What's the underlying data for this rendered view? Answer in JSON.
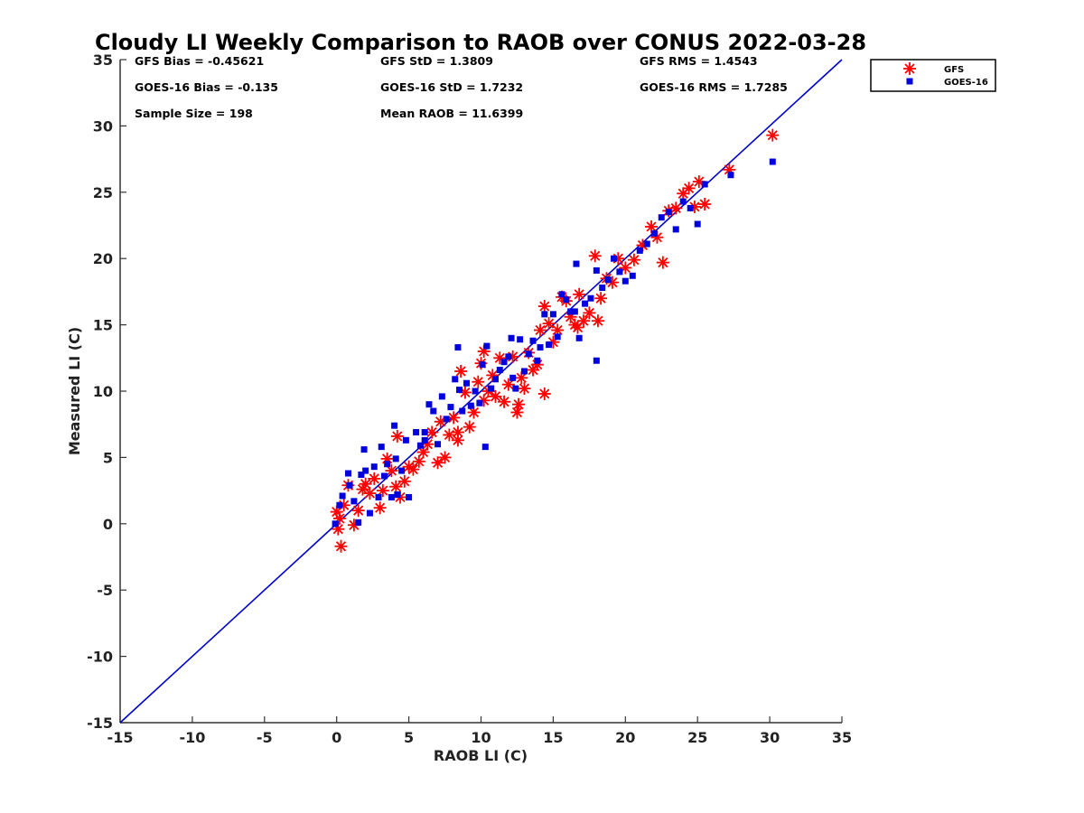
{
  "chart_data": {
    "type": "scatter",
    "title": "Cloudy LI Weekly Comparison to RAOB over CONUS 2022-03-28",
    "xlabel": "RAOB LI (C)",
    "ylabel": "Measured LI (C)",
    "xlim": [
      -15,
      35
    ],
    "ylim": [
      -15,
      35
    ],
    "xticks": [
      -15,
      -10,
      -5,
      0,
      5,
      10,
      15,
      20,
      25,
      30,
      35
    ],
    "yticks": [
      -15,
      -10,
      -5,
      0,
      5,
      10,
      15,
      20,
      25,
      30,
      35
    ],
    "grid": false,
    "legend_position": "outside-top-right",
    "reference_line": {
      "x": [
        -15,
        35
      ],
      "y": [
        -15,
        35
      ],
      "color": "#0000cc"
    },
    "stats": [
      "GFS Bias = -0.45621",
      "GFS StD = 1.3809",
      "GFS RMS = 1.4543",
      "GOES-16 Bias = -0.135",
      "GOES-16 StD = 1.7232",
      "GOES-16 RMS = 1.7285",
      "Sample Size = 198",
      "Mean RAOB = 11.6399"
    ],
    "series": [
      {
        "name": "GFS",
        "marker": "asterisk",
        "color": "#ff0000",
        "x": [
          0.0,
          0.1,
          0.2,
          0.5,
          0.8,
          1.2,
          1.5,
          1.8,
          2.0,
          2.3,
          2.6,
          3.0,
          3.2,
          3.5,
          3.8,
          4.1,
          4.4,
          4.7,
          5.0,
          5.3,
          5.7,
          6.0,
          6.3,
          6.6,
          7.0,
          7.2,
          7.5,
          7.8,
          8.1,
          8.4,
          8.6,
          8.9,
          9.2,
          9.5,
          9.8,
          10.0,
          10.2,
          10.5,
          10.8,
          11.0,
          11.3,
          11.6,
          11.9,
          12.2,
          12.5,
          12.8,
          13.0,
          13.3,
          13.6,
          13.9,
          14.1,
          14.4,
          14.7,
          15.0,
          15.3,
          15.6,
          15.9,
          16.2,
          16.5,
          16.8,
          17.1,
          17.5,
          17.9,
          18.3,
          18.7,
          19.1,
          19.5,
          20.0,
          20.6,
          21.2,
          21.8,
          22.2,
          22.6,
          23.0,
          23.5,
          24.0,
          24.4,
          24.8,
          25.1,
          25.5,
          27.2,
          30.2,
          4.2,
          8.4,
          12.6,
          14.4,
          10.2,
          16.7,
          18.1,
          0.3
        ],
        "y": [
          0.9,
          -0.4,
          0.4,
          1.4,
          2.9,
          -0.1,
          1.0,
          2.6,
          3.0,
          2.3,
          3.4,
          1.2,
          2.5,
          4.9,
          4.0,
          2.8,
          2.0,
          3.2,
          4.3,
          4.1,
          4.7,
          5.4,
          6.0,
          6.9,
          4.6,
          7.7,
          5.0,
          6.7,
          8.0,
          6.3,
          11.5,
          9.9,
          7.3,
          8.4,
          10.7,
          12.1,
          9.3,
          10.0,
          11.2,
          9.6,
          12.5,
          9.2,
          10.5,
          12.6,
          8.4,
          11.0,
          10.2,
          12.9,
          11.6,
          12.0,
          14.6,
          16.4,
          15.1,
          13.7,
          14.6,
          17.1,
          16.8,
          15.6,
          15.0,
          17.3,
          15.3,
          15.9,
          20.2,
          17.0,
          18.5,
          18.2,
          20.0,
          19.3,
          19.9,
          21.0,
          22.4,
          21.6,
          19.7,
          23.6,
          23.8,
          24.9,
          25.3,
          23.9,
          25.8,
          24.1,
          26.7,
          29.3,
          6.6,
          6.9,
          9.0,
          9.8,
          13.0,
          14.8,
          15.3,
          -1.7
        ]
      },
      {
        "name": "GOES-16",
        "marker": "square",
        "color": "#0000dd",
        "x": [
          -0.1,
          0.2,
          0.4,
          0.8,
          0.9,
          1.2,
          1.5,
          1.7,
          2.0,
          2.3,
          2.6,
          2.9,
          3.1,
          3.3,
          3.5,
          3.8,
          4.0,
          4.2,
          4.5,
          4.8,
          5.0,
          5.5,
          5.8,
          6.1,
          6.4,
          6.7,
          7.0,
          7.3,
          7.6,
          7.9,
          8.2,
          8.4,
          8.7,
          9.0,
          9.3,
          9.6,
          9.9,
          10.1,
          10.4,
          10.7,
          11.0,
          11.3,
          11.6,
          11.9,
          12.2,
          12.4,
          12.7,
          13.0,
          13.3,
          13.6,
          13.9,
          14.1,
          14.4,
          14.7,
          15.0,
          15.3,
          15.6,
          15.9,
          16.2,
          16.5,
          16.8,
          17.2,
          17.6,
          18.0,
          18.4,
          18.8,
          19.2,
          19.6,
          20.0,
          20.5,
          21.0,
          21.5,
          22.0,
          22.5,
          23.0,
          23.5,
          24.0,
          24.5,
          25.0,
          25.5,
          27.3,
          30.2,
          1.9,
          4.1,
          6.1,
          8.5,
          10.3,
          12.1,
          16.6,
          18.0
        ],
        "y": [
          0.0,
          1.4,
          2.1,
          3.8,
          2.9,
          1.7,
          0.1,
          3.7,
          4.0,
          0.8,
          4.3,
          2.0,
          5.8,
          3.6,
          4.5,
          2.0,
          7.4,
          2.2,
          4.0,
          6.3,
          2.0,
          6.9,
          5.9,
          6.3,
          9.0,
          8.5,
          6.0,
          9.6,
          7.9,
          8.8,
          10.9,
          13.3,
          8.5,
          10.6,
          8.9,
          10.0,
          9.1,
          12.0,
          13.4,
          10.2,
          10.9,
          11.6,
          12.2,
          12.6,
          11.0,
          10.2,
          13.9,
          11.5,
          12.8,
          13.8,
          12.3,
          13.3,
          15.8,
          13.5,
          15.8,
          14.1,
          17.3,
          16.9,
          16.0,
          16.0,
          14.0,
          16.6,
          17.0,
          19.1,
          17.8,
          18.4,
          20.0,
          19.0,
          18.3,
          18.7,
          20.6,
          21.1,
          21.9,
          23.1,
          23.5,
          22.2,
          24.3,
          23.8,
          22.6,
          25.6,
          26.3,
          27.3,
          5.6,
          4.9,
          6.9,
          10.1,
          5.8,
          14.0,
          19.6,
          12.3
        ]
      }
    ]
  }
}
